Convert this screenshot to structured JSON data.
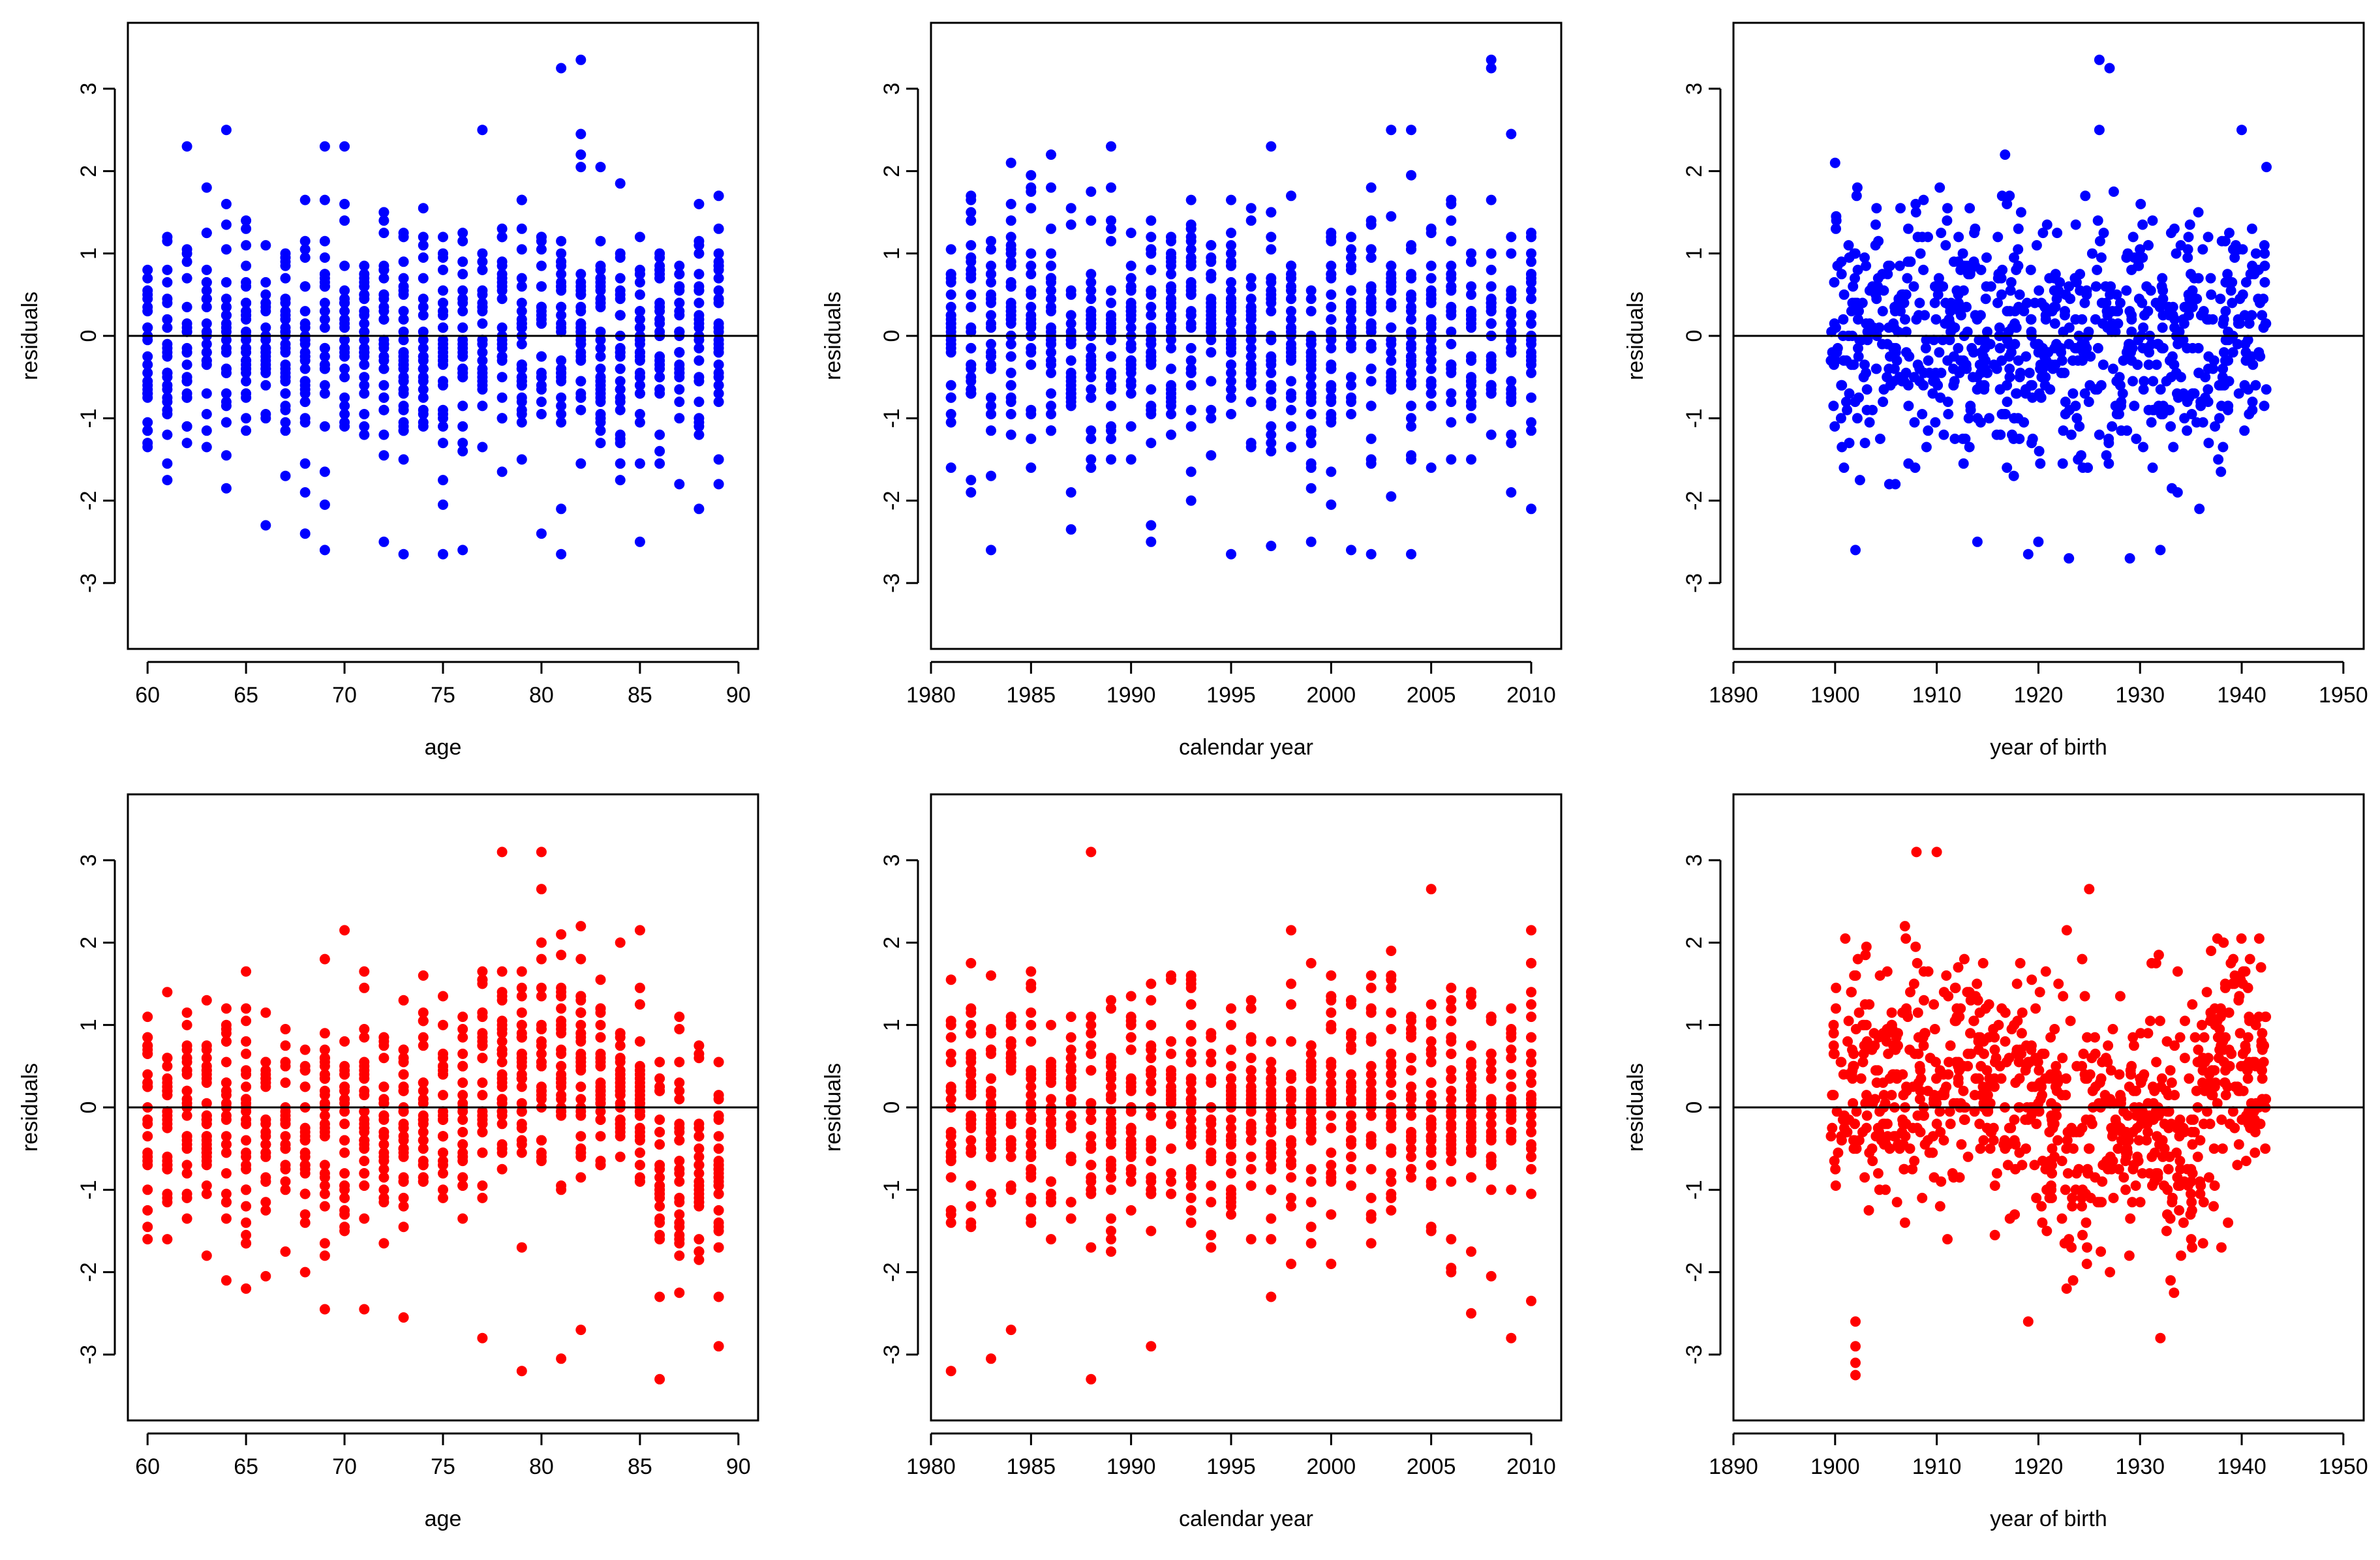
{
  "figure_description_note": "",
  "chart_data": [
    {
      "type": "scatter",
      "row": "top",
      "color": "#0000ff",
      "xlabel": "age",
      "ylabel": "residuals",
      "xlim": [
        59,
        91
      ],
      "ylim": [
        -3.8,
        3.8
      ],
      "xticks": [
        60,
        65,
        70,
        75,
        80,
        85,
        90
      ],
      "yticks": [
        -3,
        -2,
        -1,
        0,
        1,
        2,
        3
      ],
      "x_values": [
        60,
        61,
        62,
        63,
        64,
        65,
        66,
        67,
        68,
        69,
        70,
        71,
        72,
        73,
        74,
        75,
        76,
        77,
        78,
        79,
        80,
        81,
        82,
        83,
        84,
        85,
        86,
        87,
        88,
        89
      ],
      "reference_line_y": 0,
      "seed": 11,
      "extremes": [
        [
          64,
          2.5
        ],
        [
          69,
          2.3
        ],
        [
          70,
          2.3
        ],
        [
          77,
          2.5
        ],
        [
          81,
          3.25
        ],
        [
          82,
          3.35
        ],
        [
          82,
          2.45
        ],
        [
          61,
          -1.55
        ],
        [
          64,
          -1.85
        ],
        [
          68,
          -2.4
        ],
        [
          69,
          -2.6
        ],
        [
          72,
          -2.5
        ],
        [
          73,
          -2.65
        ],
        [
          75,
          -2.65
        ],
        [
          76,
          -2.6
        ],
        [
          80,
          -2.4
        ],
        [
          81,
          -2.65
        ],
        [
          85,
          -2.5
        ],
        [
          88,
          -2.1
        ],
        [
          89,
          -1.8
        ]
      ]
    },
    {
      "type": "scatter",
      "row": "top",
      "color": "#0000ff",
      "xlabel": "calendar year",
      "ylabel": "residuals",
      "xlim": [
        1980,
        2011.5
      ],
      "ylim": [
        -3.8,
        3.8
      ],
      "xticks": [
        1980,
        1985,
        1990,
        1995,
        2000,
        2005,
        2010
      ],
      "yticks": [
        -3,
        -2,
        -1,
        0,
        1,
        2,
        3
      ],
      "x_values": [
        1981,
        1982,
        1983,
        1984,
        1985,
        1986,
        1987,
        1988,
        1989,
        1990,
        1991,
        1992,
        1993,
        1994,
        1995,
        1996,
        1997,
        1998,
        1999,
        2000,
        2001,
        2002,
        2003,
        2004,
        2005,
        2006,
        2007,
        2008,
        2009,
        2010
      ],
      "reference_line_y": 0,
      "seed": 23,
      "extremes": [
        [
          1984,
          2.1
        ],
        [
          1989,
          2.3
        ],
        [
          1997,
          2.3
        ],
        [
          2003,
          2.5
        ],
        [
          2004,
          2.5
        ],
        [
          2008,
          3.35
        ],
        [
          2008,
          3.25
        ],
        [
          2009,
          2.45
        ],
        [
          1983,
          -2.6
        ],
        [
          1987,
          -2.35
        ],
        [
          1991,
          -2.5
        ],
        [
          1995,
          -2.65
        ],
        [
          1997,
          -2.55
        ],
        [
          1999,
          -2.5
        ],
        [
          2001,
          -2.6
        ],
        [
          2002,
          -2.65
        ],
        [
          2004,
          -2.65
        ],
        [
          2010,
          -2.1
        ]
      ]
    },
    {
      "type": "scatter",
      "row": "top",
      "color": "#0000ff",
      "xlabel": "year of birth",
      "ylabel": "residuals",
      "xlim": [
        1890,
        1952
      ],
      "ylim": [
        -3.8,
        3.8
      ],
      "xticks": [
        1890,
        1900,
        1910,
        1920,
        1930,
        1940,
        1950
      ],
      "yticks": [
        -3,
        -2,
        -1,
        0,
        1,
        2,
        3
      ],
      "x_range": [
        1900,
        1942
      ],
      "reference_line_y": 0,
      "seed": 37,
      "extremes": [
        [
          1900,
          2.1
        ],
        [
          1926,
          3.35
        ],
        [
          1927,
          3.25
        ],
        [
          1926,
          2.5
        ],
        [
          1940,
          2.5
        ],
        [
          1902,
          -2.6
        ],
        [
          1919,
          -2.65
        ],
        [
          1923,
          -2.7
        ],
        [
          1929,
          -2.7
        ],
        [
          1932,
          -2.6
        ],
        [
          1920,
          -2.5
        ],
        [
          1914,
          -2.5
        ]
      ]
    },
    {
      "type": "scatter",
      "row": "bottom",
      "color": "#ff0000",
      "xlabel": "age",
      "ylabel": "residuals",
      "xlim": [
        59,
        91
      ],
      "ylim": [
        -3.8,
        3.8
      ],
      "xticks": [
        60,
        65,
        70,
        75,
        80,
        85,
        90
      ],
      "yticks": [
        -3,
        -2,
        -1,
        0,
        1,
        2,
        3
      ],
      "x_values": [
        60,
        61,
        62,
        63,
        64,
        65,
        66,
        67,
        68,
        69,
        70,
        71,
        72,
        73,
        74,
        75,
        76,
        77,
        78,
        79,
        80,
        81,
        82,
        83,
        84,
        85,
        86,
        87,
        88,
        89
      ],
      "reference_line_y": 0,
      "seed": 53,
      "extremes": [
        [
          78,
          3.1
        ],
        [
          80,
          3.1
        ],
        [
          80,
          2.65
        ],
        [
          70,
          2.15
        ],
        [
          85,
          2.15
        ],
        [
          64,
          -2.1
        ],
        [
          66,
          -2.05
        ],
        [
          69,
          -2.45
        ],
        [
          71,
          -2.45
        ],
        [
          73,
          -2.55
        ],
        [
          77,
          -2.8
        ],
        [
          79,
          -3.2
        ],
        [
          81,
          -3.05
        ],
        [
          82,
          -2.7
        ],
        [
          86,
          -3.3
        ],
        [
          89,
          -2.9
        ]
      ]
    },
    {
      "type": "scatter",
      "row": "bottom",
      "color": "#ff0000",
      "xlabel": "calendar year",
      "ylabel": "residuals",
      "xlim": [
        1980,
        2011.5
      ],
      "ylim": [
        -3.8,
        3.8
      ],
      "xticks": [
        1980,
        1985,
        1990,
        1995,
        2000,
        2005,
        2010
      ],
      "yticks": [
        -3,
        -2,
        -1,
        0,
        1,
        2,
        3
      ],
      "x_values": [
        1981,
        1982,
        1983,
        1984,
        1985,
        1986,
        1987,
        1988,
        1989,
        1990,
        1991,
        1992,
        1993,
        1994,
        1995,
        1996,
        1997,
        1998,
        1999,
        2000,
        2001,
        2002,
        2003,
        2004,
        2005,
        2006,
        2007,
        2008,
        2009,
        2010
      ],
      "reference_line_y": 0,
      "seed": 71,
      "extremes": [
        [
          1988,
          3.1
        ],
        [
          2005,
          2.65
        ],
        [
          1998,
          2.15
        ],
        [
          2010,
          2.15
        ],
        [
          1981,
          -3.2
        ],
        [
          1983,
          -3.05
        ],
        [
          1984,
          -2.7
        ],
        [
          1988,
          -3.3
        ],
        [
          1991,
          -2.9
        ],
        [
          2007,
          -2.5
        ],
        [
          2009,
          -2.8
        ],
        [
          2010,
          -2.35
        ]
      ]
    },
    {
      "type": "scatter",
      "row": "bottom",
      "color": "#ff0000",
      "xlabel": "year of birth",
      "ylabel": "residuals",
      "xlim": [
        1890,
        1952
      ],
      "ylim": [
        -3.8,
        3.8
      ],
      "xticks": [
        1890,
        1900,
        1910,
        1920,
        1930,
        1940,
        1950
      ],
      "yticks": [
        -3,
        -2,
        -1,
        0,
        1,
        2,
        3
      ],
      "x_range": [
        1900,
        1942
      ],
      "reference_line_y": 0,
      "seed": 89,
      "extremes": [
        [
          1908,
          3.1
        ],
        [
          1910,
          3.1
        ],
        [
          1925,
          2.65
        ],
        [
          1901,
          2.05
        ],
        [
          1902,
          -3.25
        ],
        [
          1902,
          -3.1
        ],
        [
          1902,
          -2.9
        ],
        [
          1902,
          -2.6
        ],
        [
          1919,
          -2.6
        ],
        [
          1932,
          -2.8
        ],
        [
          1933,
          -2.1
        ],
        [
          1938,
          -1.7
        ]
      ]
    }
  ]
}
